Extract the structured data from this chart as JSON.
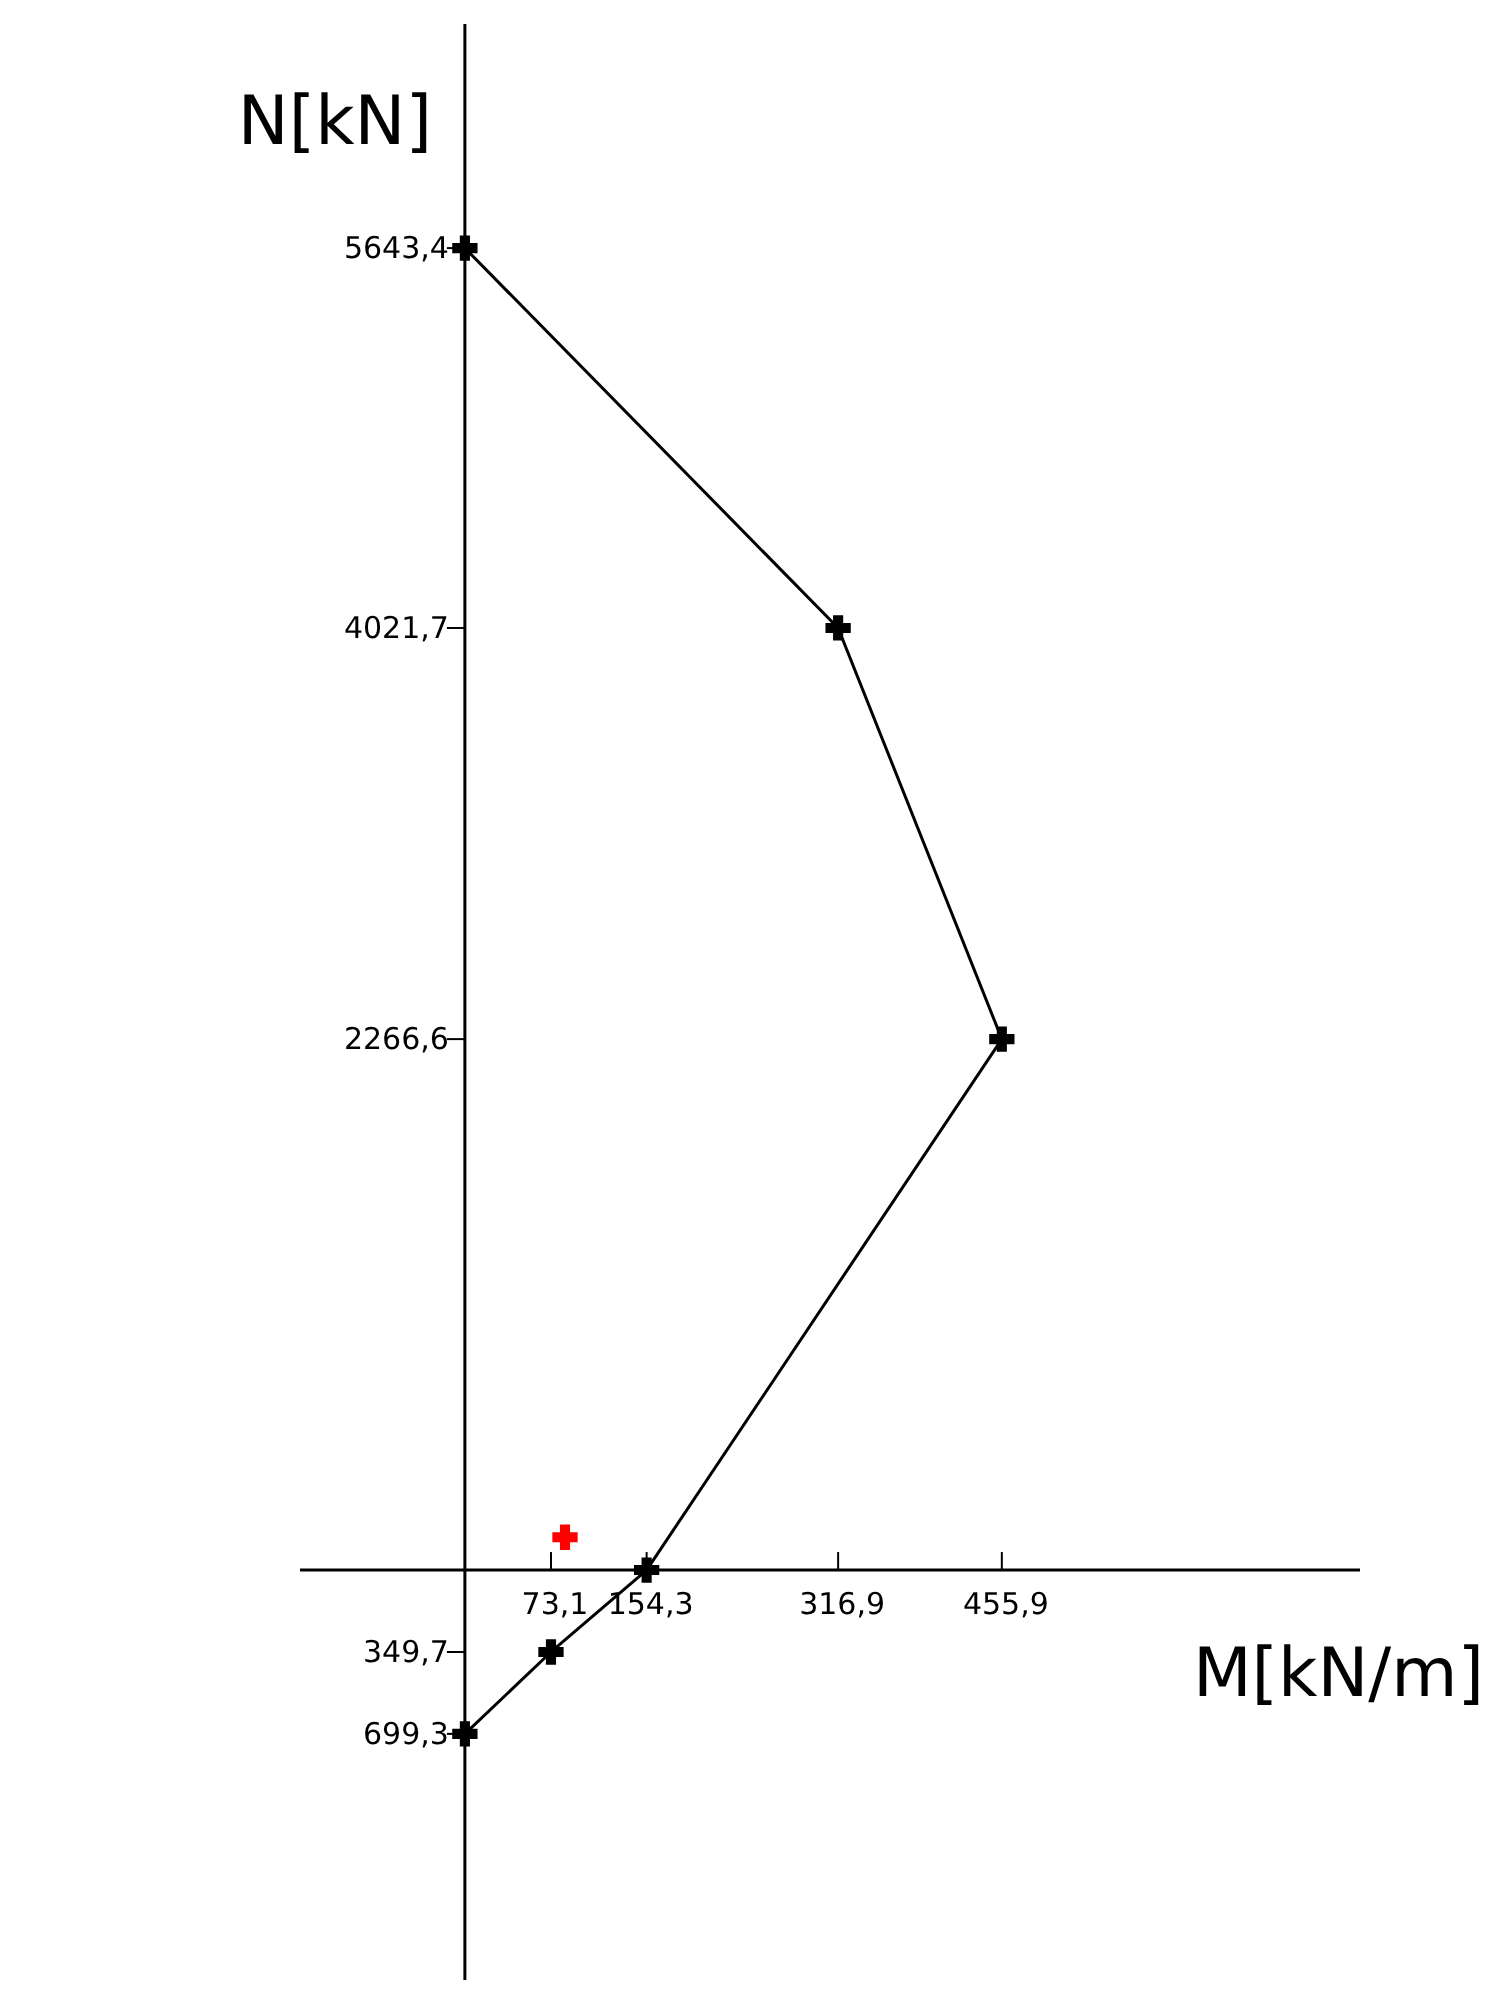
{
  "chart_data": {
    "type": "line",
    "xlabel": "M[kN/m]",
    "ylabel": "N[kN]",
    "xlim": [
      -140,
      760
    ],
    "ylim": [
      -1750,
      6600
    ],
    "xticks": [
      {
        "value": 73.1,
        "label": "73,1"
      },
      {
        "value": 154.3,
        "label": "154,3"
      },
      {
        "value": 316.9,
        "label": "316,9"
      },
      {
        "value": 455.9,
        "label": "455,9"
      }
    ],
    "yticks": [
      {
        "value": 5643.4,
        "label": "5643,4"
      },
      {
        "value": 4021.7,
        "label": "4021,7"
      },
      {
        "value": 2266.6,
        "label": "2266,6"
      },
      {
        "value": -349.7,
        "label": "349,7"
      },
      {
        "value": -699.3,
        "label": "699,3"
      }
    ],
    "grid": false,
    "series": [
      {
        "color": "#000000",
        "marker": "cross",
        "line_style": "solid",
        "x": [
          0,
          316.9,
          455.9,
          154.3,
          73.1,
          0
        ],
        "values": [
          5643.4,
          4021.7,
          2266.6,
          0,
          -349.7,
          -699.3
        ]
      },
      {
        "type": "scatter",
        "color": "#ff0000",
        "marker": "cross",
        "x": [
          85
        ],
        "values": [
          140
        ]
      }
    ]
  }
}
